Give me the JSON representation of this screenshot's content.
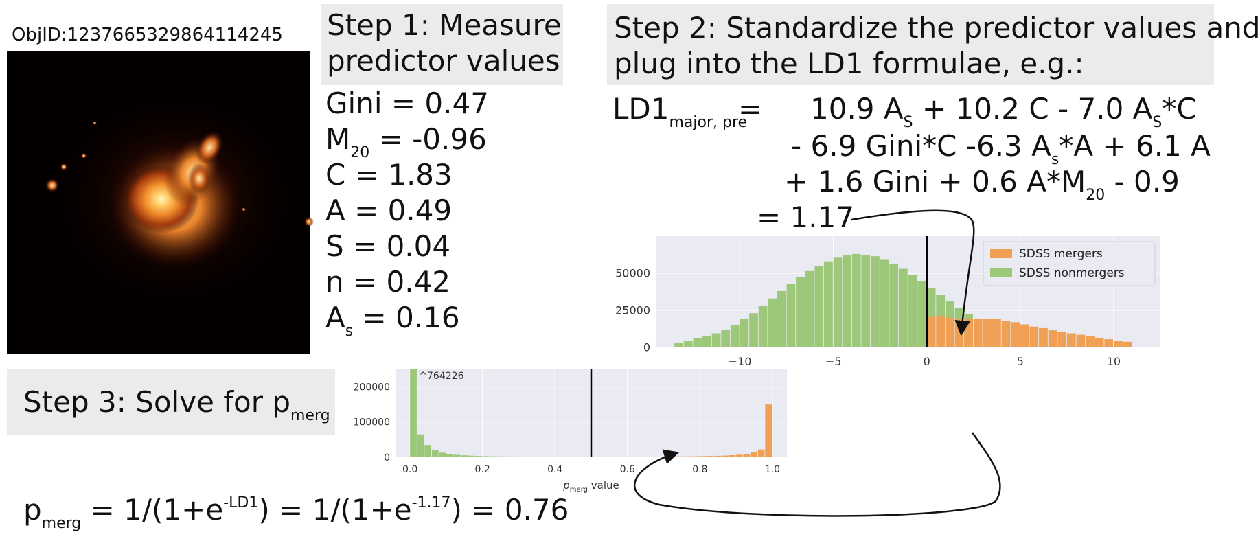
{
  "objid": "ObjID:1237665329864114245",
  "step1": {
    "line1": "Step 1: Measure",
    "line2": "predictor values"
  },
  "predictors": [
    {
      "name": "Gini",
      "sub": "",
      "value": " = 0.47"
    },
    {
      "name": "M",
      "sub": "20",
      "value": " = -0.96"
    },
    {
      "name": "C",
      "sub": "",
      "value": " = 1.83"
    },
    {
      "name": "A",
      "sub": "",
      "value": " = 0.49"
    },
    {
      "name": "S",
      "sub": "",
      "value": " = 0.04"
    },
    {
      "name": "n",
      "sub": "",
      "value": " = 0.42"
    },
    {
      "name": "A",
      "sub": "s",
      "value": " = 0.16"
    }
  ],
  "step2": {
    "line1": "Step 2: Standardize the predictor values and",
    "line2": "plug into the LD1 formulae, e.g.:"
  },
  "formula": {
    "lhs": "LD1",
    "lhs_sub": "major, pre",
    "eq": "=",
    "l1a": "10.9 A",
    "l1a_sub": "S",
    "l1b": " + 10.2 C - 7.0 A",
    "l1b_sub": "S",
    "l1c": "*C",
    "l2a": "- 6.9 Gini*C -6.3 A",
    "l2a_sub": "s",
    "l2b": "*A + 6.1 A",
    "l3a": "+ 1.6 Gini + 0.6 A*M",
    "l3a_sub": "20",
    "l3b": " - 0.9",
    "result": "= 1.17"
  },
  "step3": {
    "text": "Step 3: Solve for p",
    "sub": "merg"
  },
  "final": {
    "p": "p",
    "p_sub": "merg",
    "a": " = 1/(1+e",
    "a_sup": "-LD1",
    "b": ") = 1/(1+e",
    "b_sup": "-1.17",
    "c": ") = 0.76"
  },
  "colors": {
    "merger": "#f0a055",
    "nonmerger": "#9dc87a",
    "plot_bg": "#eaeaf2",
    "step_box": "#ebebeb"
  },
  "chart_data": [
    {
      "type": "bar",
      "title": "",
      "xlabel": "",
      "ylabel": "",
      "xlim": [
        -14.5,
        12.5
      ],
      "ylim": [
        0,
        75000
      ],
      "xticks": [
        "−10",
        "−5",
        "0",
        "5",
        "10"
      ],
      "xtick_values": [
        -10,
        -5,
        0,
        5,
        10
      ],
      "yticks": [
        "0",
        "25000",
        "50000"
      ],
      "ytick_values": [
        0,
        25000,
        50000
      ],
      "bin_width": 0.5,
      "legend": {
        "placement": "top-right",
        "entries": [
          "SDSS mergers",
          "SDSS nonmergers"
        ]
      },
      "vline_x": 0,
      "series": [
        {
          "name": "SDSS nonmergers",
          "color": "#9dc87a",
          "bin_start": -13.5,
          "values": [
            3000,
            4500,
            6000,
            7500,
            9500,
            12000,
            15000,
            19000,
            23000,
            28000,
            33000,
            38000,
            43000,
            47500,
            51500,
            55000,
            58000,
            60500,
            62000,
            63000,
            62500,
            61500,
            59500,
            56500,
            53000,
            49000,
            44500,
            40000,
            35500,
            31000,
            26500,
            22500
          ]
        },
        {
          "name": "SDSS mergers",
          "color": "#f0a055",
          "bin_start": 0,
          "values": [
            20500,
            21000,
            20000,
            19000,
            19500,
            19500,
            19000,
            19000,
            18000,
            17000,
            15500,
            14000,
            13000,
            11500,
            10500,
            9500,
            8500,
            7500,
            6500,
            5500,
            4500,
            3800
          ]
        }
      ]
    },
    {
      "type": "bar",
      "title": "",
      "xlabel": "p_merg value",
      "xlabel_p": "p",
      "xlabel_sub": "merg",
      "xlabel_rest": " value",
      "ylabel": "",
      "xlim": [
        -0.04,
        1.04
      ],
      "ylim": [
        0,
        250000
      ],
      "xticks": [
        "0.0",
        "0.2",
        "0.4",
        "0.6",
        "0.8",
        "1.0"
      ],
      "xtick_values": [
        0,
        0.2,
        0.4,
        0.6,
        0.8,
        1.0
      ],
      "yticks": [
        "0",
        "100000",
        "200000"
      ],
      "ytick_values": [
        0,
        100000,
        200000
      ],
      "bin_width": 0.02,
      "vline_x": 0.5,
      "annotation": "^764226",
      "series": [
        {
          "name": "",
          "color": "#9dc87a",
          "bin_start": 0,
          "values": [
            250000,
            65000,
            35000,
            20000,
            13000,
            9000,
            7000,
            5500,
            4500,
            3800,
            3200,
            2800,
            2500,
            2300,
            2100,
            2000,
            1900,
            1800,
            1700,
            1600,
            1500,
            1450,
            1400,
            1350,
            1300
          ]
        },
        {
          "name": "",
          "color": "#f0a055",
          "bin_start": 0.5,
          "values": [
            1300,
            1350,
            1400,
            1450,
            1500,
            1550,
            1600,
            1700,
            1800,
            1900,
            2000,
            2200,
            2400,
            2600,
            2900,
            3200,
            3600,
            4100,
            4800,
            5800,
            7200,
            9500,
            14000,
            22000,
            150000
          ]
        }
      ]
    }
  ]
}
